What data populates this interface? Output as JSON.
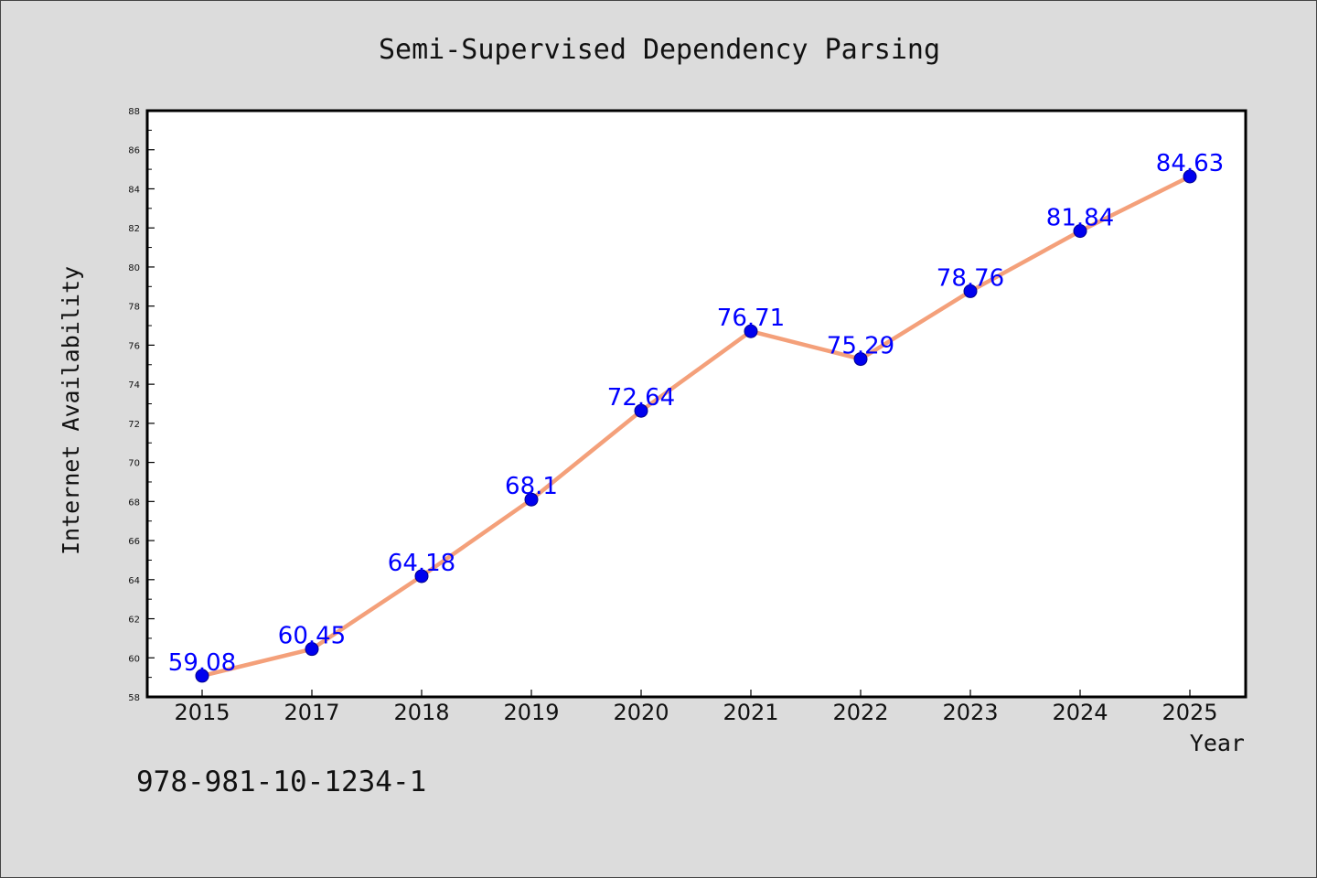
{
  "chart_data": {
    "type": "line",
    "title": "Semi-Supervised Dependency Parsing",
    "xlabel": "Year",
    "ylabel": "Internet Availability",
    "categories": [
      "2015",
      "2017",
      "2018",
      "2019",
      "2020",
      "2021",
      "2022",
      "2023",
      "2024",
      "2025"
    ],
    "series": [
      {
        "values": [
          59.08,
          60.45,
          64.18,
          68.1,
          72.64,
          76.71,
          75.29,
          78.76,
          81.84,
          84.63
        ],
        "data_labels": [
          "59.08",
          "60.45",
          "64.18",
          "68.1",
          "72.64",
          "76.71",
          "75.29",
          "78.76",
          "81.84",
          "84.63"
        ]
      }
    ],
    "ylim": [
      58,
      88
    ],
    "yticks": [
      58,
      60,
      62,
      64,
      66,
      68,
      70,
      72,
      74,
      76,
      78,
      80,
      82,
      84,
      86,
      88
    ],
    "grid": false,
    "colors": {
      "line": "#f4a07a",
      "marker": "#0000ee",
      "data_label": "#0000ff",
      "background": "#dcdcdc",
      "plot_area": "#ffffff"
    }
  },
  "footnote": "978-981-10-1234-1"
}
